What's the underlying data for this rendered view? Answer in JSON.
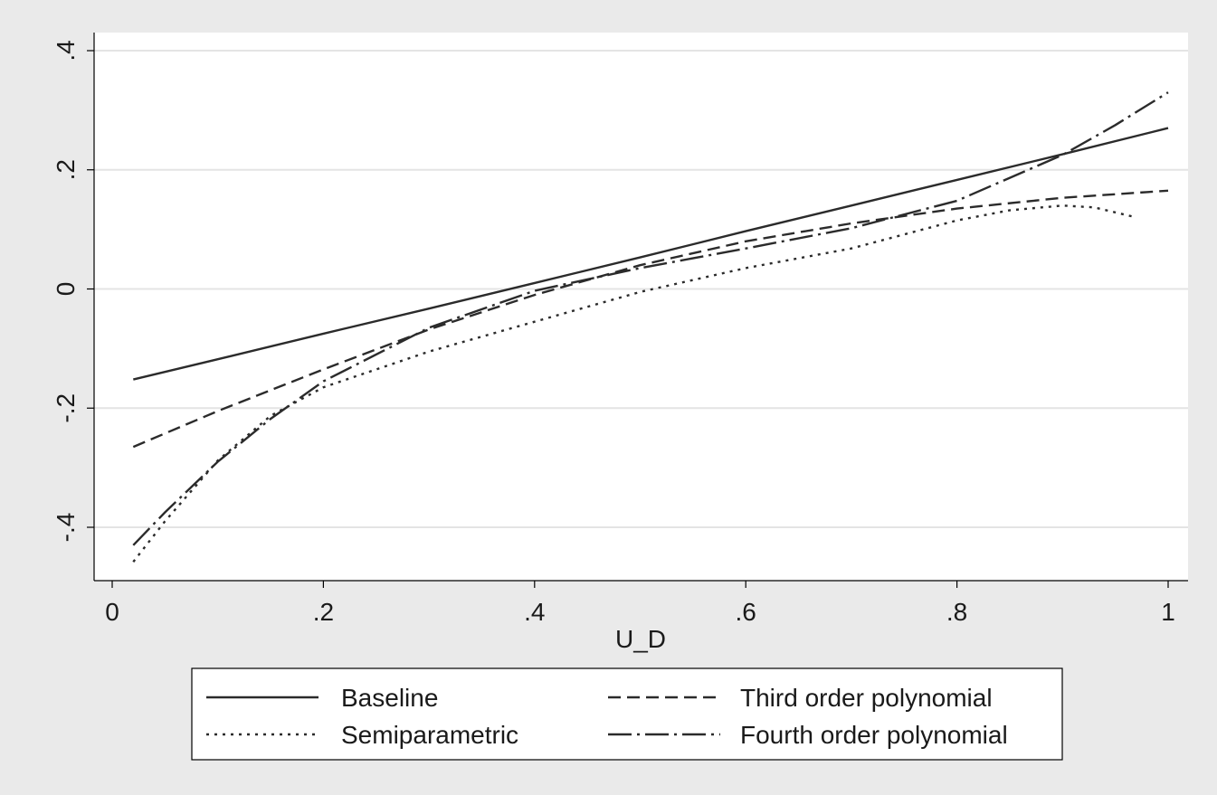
{
  "chart_data": {
    "type": "line",
    "xlabel": "U_D",
    "ylabel": "",
    "xlim": [
      0,
      1
    ],
    "ylim": [
      -0.49,
      0.4
    ],
    "x_ticks": [
      0,
      0.2,
      0.4,
      0.6,
      0.8,
      1
    ],
    "x_tick_labels": [
      "0",
      ".2",
      ".4",
      ".6",
      ".8",
      "1"
    ],
    "y_ticks": [
      -0.4,
      -0.2,
      0,
      0.2,
      0.4
    ],
    "y_tick_labels": [
      "-.4",
      "-.2",
      "0",
      ".2",
      ".4"
    ],
    "grid": "horizontal",
    "legend_position": "bottom",
    "series": [
      {
        "name": "Baseline",
        "dash": "solid",
        "x": [
          0.02,
          0.1,
          0.2,
          0.3,
          0.4,
          0.5,
          0.6,
          0.7,
          0.8,
          0.9,
          1.0
        ],
        "y": [
          -0.152,
          -0.118,
          -0.075,
          -0.033,
          0.01,
          0.053,
          0.097,
          0.14,
          0.183,
          0.226,
          0.27
        ]
      },
      {
        "name": "Third order polynomial",
        "dash": "dashed",
        "x": [
          0.02,
          0.1,
          0.2,
          0.3,
          0.4,
          0.5,
          0.6,
          0.7,
          0.8,
          0.9,
          1.0
        ],
        "y": [
          -0.265,
          -0.205,
          -0.135,
          -0.068,
          -0.01,
          0.04,
          0.08,
          0.11,
          0.135,
          0.153,
          0.165
        ]
      },
      {
        "name": "Semiparametric",
        "dash": "dotted",
        "x": [
          0.02,
          0.05,
          0.1,
          0.15,
          0.2,
          0.3,
          0.4,
          0.5,
          0.6,
          0.7,
          0.8,
          0.85,
          0.9,
          0.93,
          0.97
        ],
        "y": [
          -0.458,
          -0.39,
          -0.288,
          -0.213,
          -0.165,
          -0.105,
          -0.055,
          -0.005,
          0.035,
          0.068,
          0.115,
          0.132,
          0.14,
          0.137,
          0.12
        ]
      },
      {
        "name": "Fourth order polynomial",
        "dash": "dashdot",
        "x": [
          0.02,
          0.05,
          0.1,
          0.15,
          0.2,
          0.3,
          0.4,
          0.5,
          0.6,
          0.7,
          0.8,
          0.9,
          0.95,
          1.0
        ],
        "y": [
          -0.43,
          -0.375,
          -0.29,
          -0.218,
          -0.155,
          -0.065,
          -0.003,
          0.035,
          0.068,
          0.102,
          0.148,
          0.225,
          0.275,
          0.33
        ]
      }
    ],
    "legend_rows": [
      [
        "Baseline",
        "Third order polynomial"
      ],
      [
        "Semiparametric",
        "Fourth order polynomial"
      ]
    ]
  }
}
